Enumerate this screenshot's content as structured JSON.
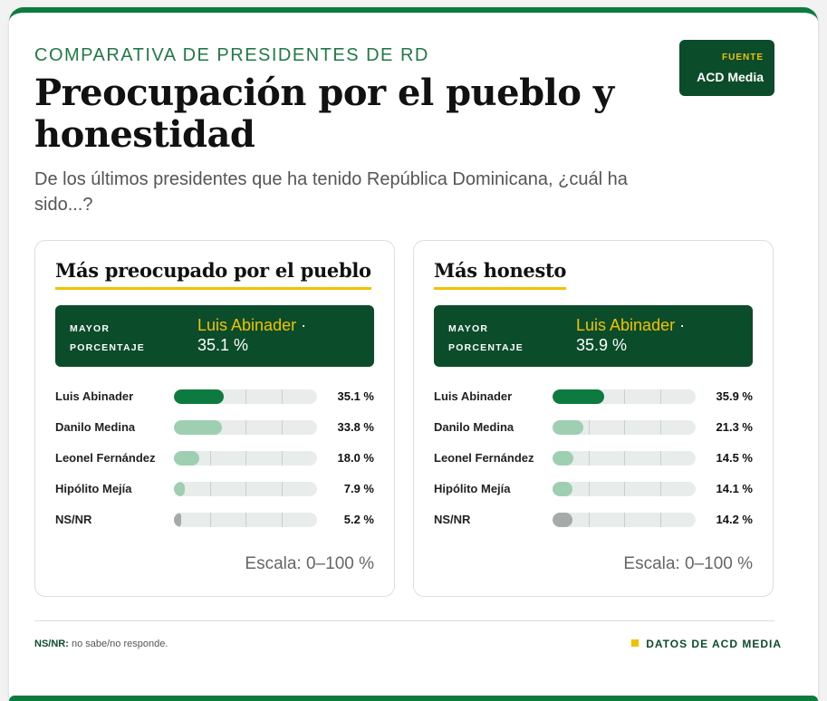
{
  "header": {
    "eyebrow": "COMPARATIVA DE PRESIDENTES DE RD",
    "title": "Preocupación por el pueblo y honestidad",
    "subtitle": "De los últimos presidentes que ha tenido República Dominicana, ¿cuál ha sido...?",
    "source_label": "FUENTE",
    "source_name": "ACD Media"
  },
  "chart_data": [
    {
      "type": "bar",
      "title": "Más preocupado por el pueblo",
      "leader_label": "MAYOR PORCENTAJE",
      "leader_name": "Luis Abinader",
      "leader_value": "35.1 %",
      "categories": [
        "Luis Abinader",
        "Danilo Medina",
        "Leonel Fernández",
        "Hipólito Mejía",
        "NS/NR"
      ],
      "values": [
        35.1,
        33.8,
        18.0,
        7.9,
        5.2
      ],
      "value_labels": [
        "35.1 %",
        "33.8 %",
        "18.0 %",
        "7.9 %",
        "5.2 %"
      ],
      "colors": [
        "#0d7a3f",
        "#9fcfb1",
        "#9fcfb1",
        "#9fcfb1",
        "#a6aaa8"
      ],
      "ylim": [
        0,
        100
      ],
      "scale_label": "Escala: 0–100 %"
    },
    {
      "type": "bar",
      "title": "Más honesto",
      "leader_label": "MAYOR PORCENTAJE",
      "leader_name": "Luis Abinader",
      "leader_value": "35.9 %",
      "categories": [
        "Luis Abinader",
        "Danilo Medina",
        "Leonel Fernández",
        "Hipólito Mejía",
        "NS/NR"
      ],
      "values": [
        35.9,
        21.3,
        14.5,
        14.1,
        14.2
      ],
      "value_labels": [
        "35.9 %",
        "21.3 %",
        "14.5 %",
        "14.1 %",
        "14.2 %"
      ],
      "colors": [
        "#0d7a3f",
        "#9fcfb1",
        "#9fcfb1",
        "#9fcfb1",
        "#a6aaa8"
      ],
      "ylim": [
        0,
        100
      ],
      "scale_label": "Escala: 0–100 %"
    }
  ],
  "footer": {
    "note_key": "NS/NR:",
    "note_text": " no sabe/no responde.",
    "brand": "DATOS DE ACD MEDIA"
  }
}
